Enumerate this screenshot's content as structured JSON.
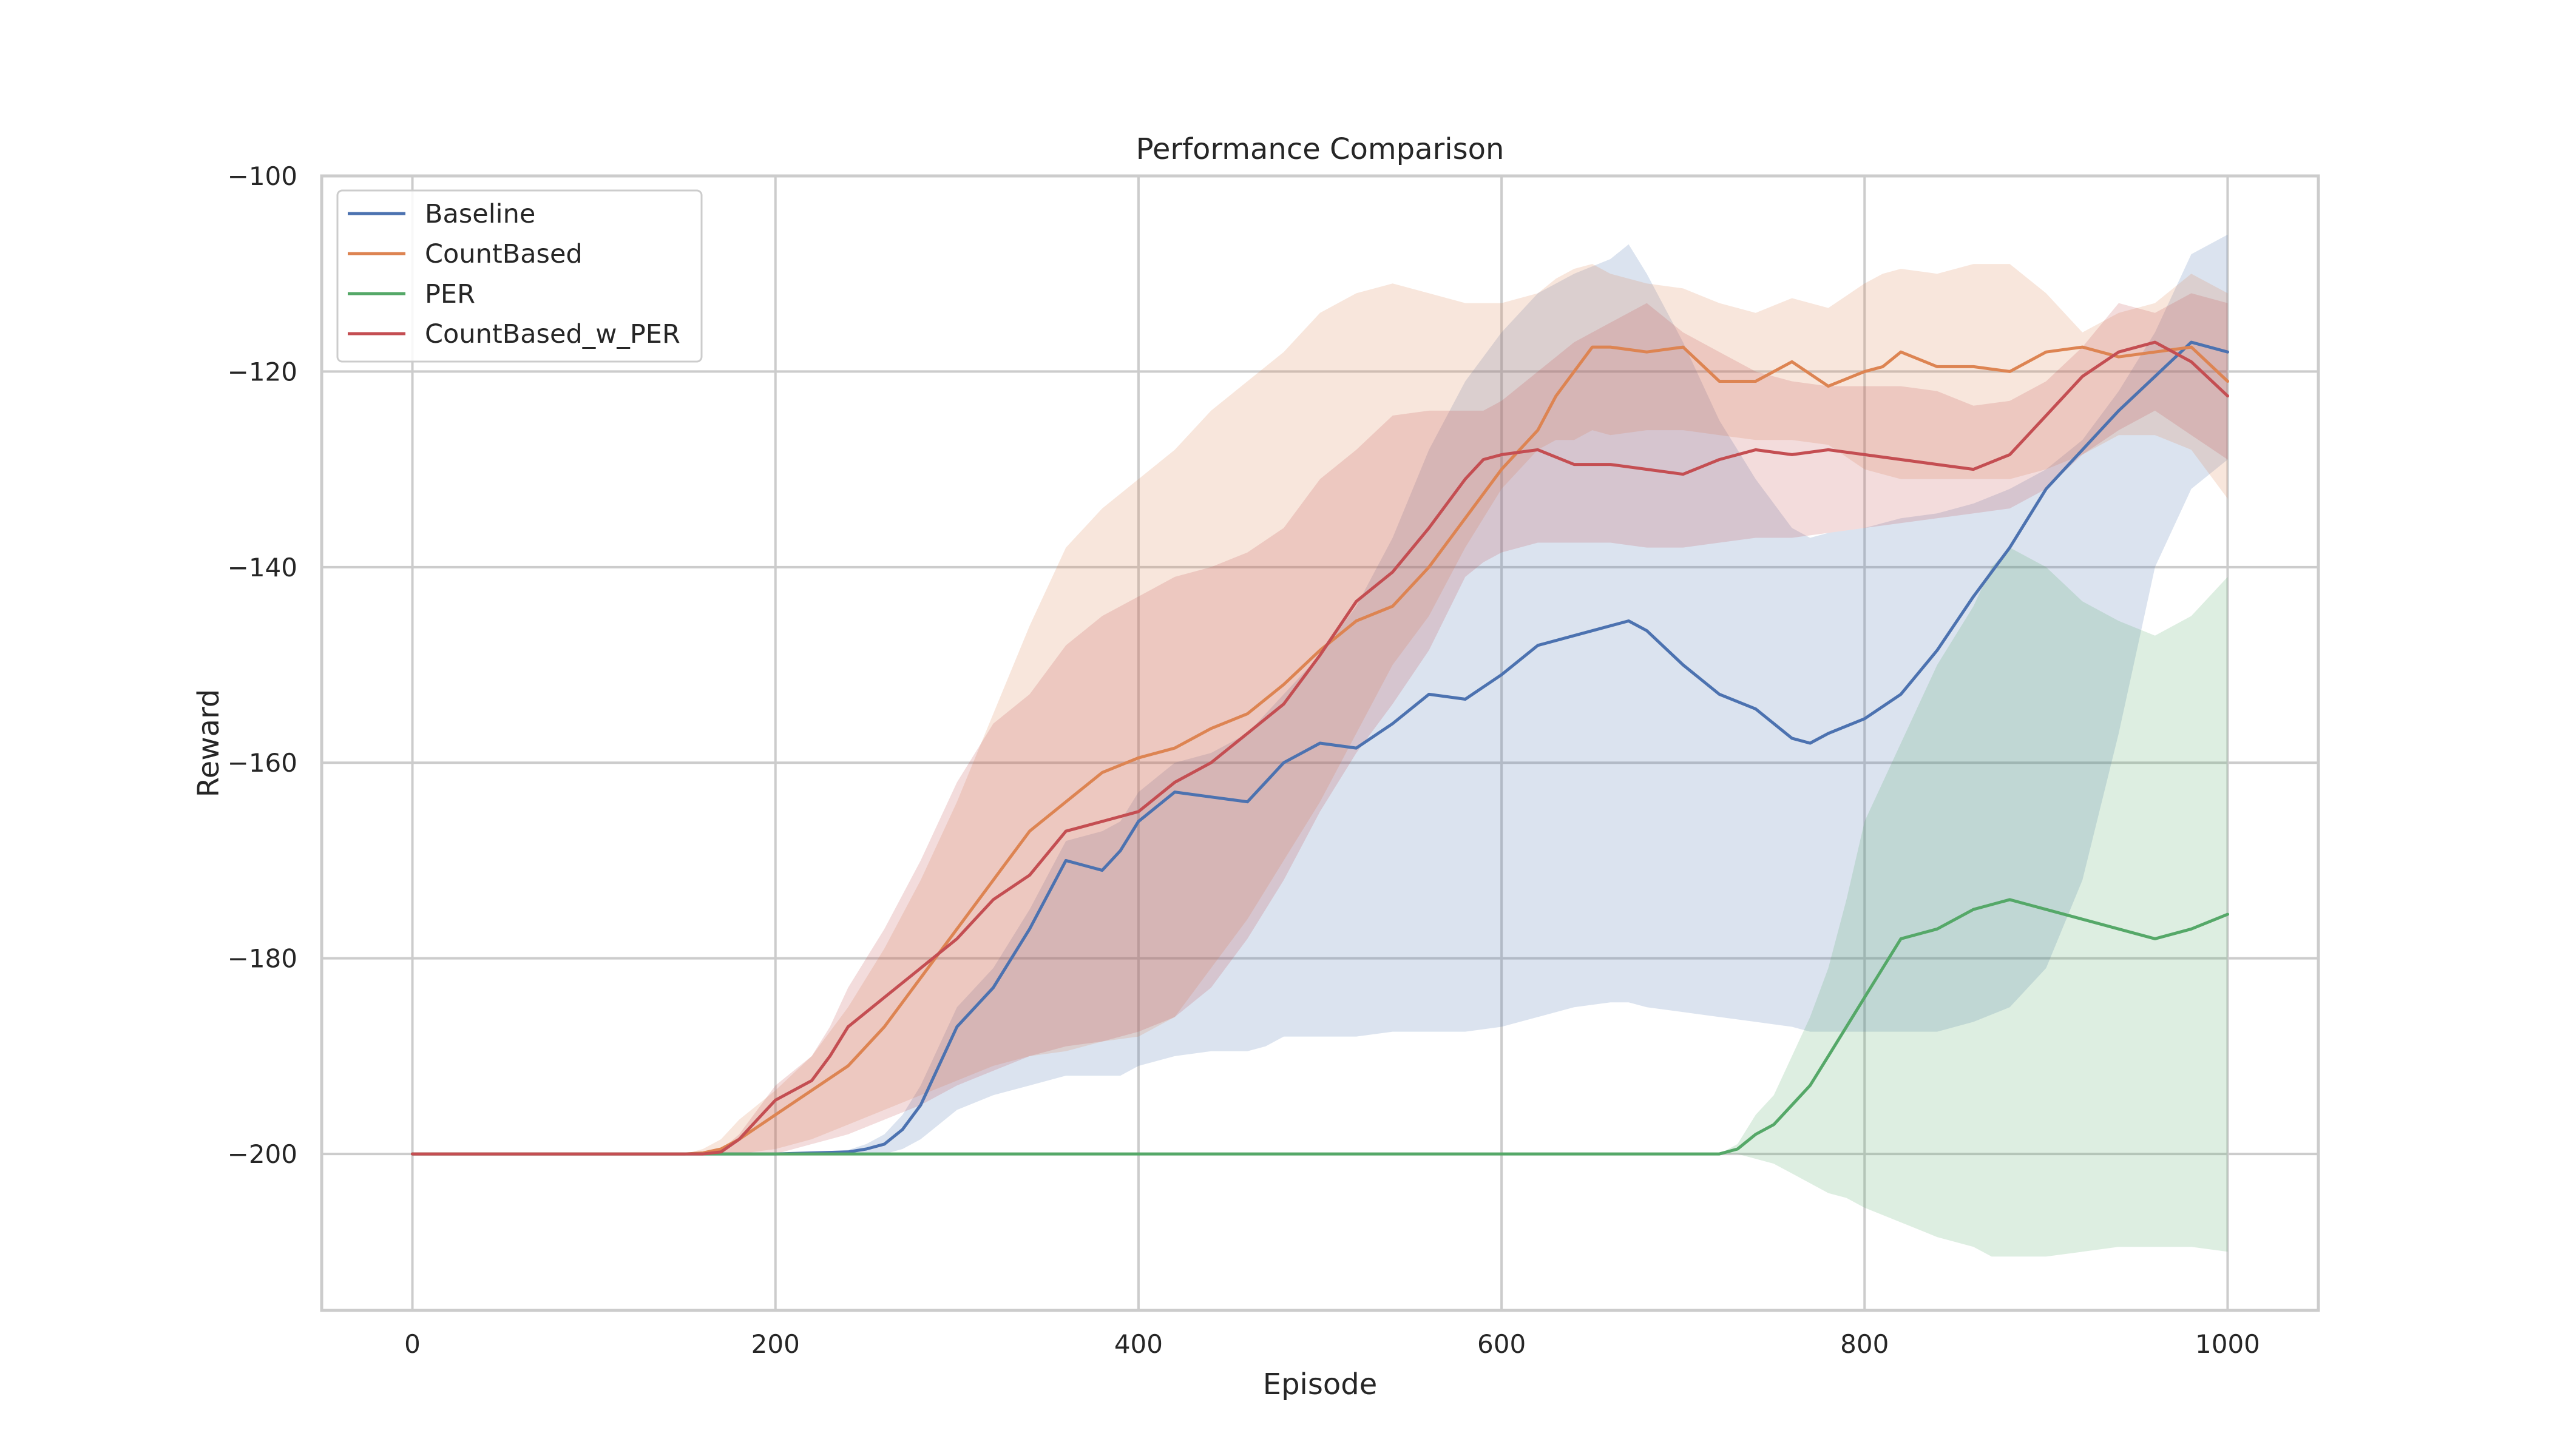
{
  "chart_data": {
    "type": "line",
    "title": "Performance Comparison",
    "xlabel": "Episode",
    "ylabel": "Reward",
    "xlim": [
      -50,
      1050
    ],
    "ylim": [
      -216,
      -100
    ],
    "xticks": [
      0,
      200,
      400,
      600,
      800,
      1000
    ],
    "yticks": [
      -100,
      -120,
      -140,
      -160,
      -180,
      -200
    ],
    "xtick_labels": [
      "0",
      "200",
      "400",
      "600",
      "800",
      "1000"
    ],
    "ytick_labels": [
      "−100",
      "−120",
      "−140",
      "−160",
      "−180",
      "−200"
    ],
    "grid": true,
    "legend_position": "top-left",
    "series": [
      {
        "name": "Baseline",
        "color": "#4c72b0",
        "x": [
          0,
          100,
          200,
          240,
          250,
          260,
          270,
          280,
          290,
          300,
          320,
          340,
          360,
          370,
          380,
          390,
          400,
          420,
          440,
          460,
          470,
          480,
          500,
          520,
          540,
          560,
          580,
          600,
          620,
          640,
          660,
          670,
          680,
          700,
          720,
          740,
          760,
          770,
          780,
          800,
          820,
          840,
          860,
          880,
          900,
          920,
          940,
          960,
          980,
          1000
        ],
        "mean": [
          -200,
          -200,
          -200,
          -199.8,
          -199.5,
          -199,
          -197.5,
          -195,
          -191,
          -187,
          -183,
          -177,
          -170,
          -170.5,
          -171,
          -169,
          -166,
          -163,
          -163.5,
          -164,
          -162,
          -160,
          -158,
          -158.5,
          -156,
          -153,
          -153.5,
          -151,
          -148,
          -147,
          -146,
          -145.5,
          -146.5,
          -150,
          -153,
          -154.5,
          -157.5,
          -158,
          -157,
          -155.5,
          -153,
          -148.5,
          -143,
          -138,
          -132,
          -128,
          -124,
          -120.5,
          -117,
          -118
        ],
        "upper": [
          -200,
          -200,
          -200,
          -199.6,
          -199,
          -198,
          -196,
          -193,
          -189,
          -185,
          -181,
          -175,
          -168,
          -167.5,
          -167,
          -166,
          -163,
          -160,
          -159,
          -157,
          -155,
          -153,
          -149,
          -144,
          -137,
          -128,
          -121,
          -116,
          -112,
          -110,
          -108.5,
          -107,
          -110,
          -117,
          -125,
          -131,
          -136,
          -137,
          -136.5,
          -136,
          -135,
          -134.5,
          -133.5,
          -132,
          -130,
          -127,
          -122,
          -116,
          -108,
          -106
        ],
        "lower": [
          -200,
          -200,
          -200,
          -200,
          -200,
          -200,
          -199.5,
          -198.5,
          -197,
          -195.5,
          -194,
          -193,
          -192,
          -192,
          -192,
          -192,
          -191,
          -190,
          -189.5,
          -189.5,
          -189,
          -188,
          -188,
          -188,
          -187.5,
          -187.5,
          -187.5,
          -187,
          -186,
          -185,
          -184.5,
          -184.5,
          -185,
          -185.5,
          -186,
          -186.5,
          -187,
          -187.5,
          -187.5,
          -187.5,
          -187.5,
          -187.5,
          -186.5,
          -185,
          -181,
          -172,
          -157,
          -140,
          -132,
          -129
        ]
      },
      {
        "name": "CountBased",
        "color": "#dd8452",
        "x": [
          0,
          100,
          150,
          160,
          170,
          180,
          200,
          220,
          240,
          260,
          280,
          300,
          320,
          340,
          360,
          380,
          400,
          420,
          440,
          460,
          480,
          500,
          520,
          540,
          560,
          580,
          600,
          620,
          630,
          640,
          650,
          660,
          680,
          700,
          720,
          740,
          760,
          780,
          800,
          810,
          820,
          840,
          860,
          880,
          900,
          920,
          940,
          960,
          980,
          1000
        ],
        "mean": [
          -200,
          -200,
          -200,
          -199.9,
          -199.5,
          -198.5,
          -196,
          -193.5,
          -191,
          -187,
          -182,
          -177,
          -172,
          -167,
          -164,
          -161,
          -159.5,
          -158.5,
          -156.5,
          -155,
          -152,
          -148.5,
          -145.5,
          -144,
          -140,
          -135,
          -130,
          -126,
          -122.5,
          -120,
          -117.5,
          -117.5,
          -118,
          -117.5,
          -121,
          -121,
          -119,
          -121.5,
          -120,
          -119.5,
          -118,
          -119.5,
          -119.5,
          -120,
          -118,
          -117.5,
          -118.5,
          -118,
          -117.5,
          -121
        ],
        "upper": [
          -200,
          -200,
          -200,
          -199.5,
          -198.5,
          -196.5,
          -193.5,
          -190,
          -185,
          -179,
          -172,
          -164,
          -155,
          -146,
          -138,
          -134,
          -131,
          -128,
          -124,
          -121,
          -118,
          -114,
          -112,
          -111,
          -112,
          -113,
          -113,
          -112,
          -110.5,
          -109.5,
          -109,
          -110,
          -111,
          -111.5,
          -113,
          -114,
          -112.5,
          -113.5,
          -111,
          -110,
          -109.5,
          -110,
          -109,
          -109,
          -112,
          -116,
          -114,
          -113,
          -110,
          -112
        ],
        "lower": [
          -200,
          -200,
          -200,
          -200,
          -200,
          -200,
          -199.5,
          -198.5,
          -197,
          -195.5,
          -194,
          -192.5,
          -191,
          -190,
          -189.5,
          -188.5,
          -188,
          -186,
          -181,
          -176,
          -170,
          -164,
          -157,
          -150,
          -145,
          -138,
          -132,
          -128,
          -127,
          -127,
          -126,
          -126.5,
          -126,
          -126,
          -126.5,
          -127,
          -127,
          -127.5,
          -130,
          -130.5,
          -131,
          -131,
          -131,
          -131,
          -130,
          -128.5,
          -126.5,
          -126.5,
          -128,
          -133
        ]
      },
      {
        "name": "PER",
        "color": "#55a868",
        "x": [
          0,
          100,
          200,
          300,
          400,
          500,
          600,
          700,
          720,
          730,
          740,
          750,
          760,
          770,
          780,
          790,
          800,
          820,
          840,
          860,
          870,
          880,
          890,
          900,
          920,
          940,
          960,
          980,
          1000
        ],
        "mean": [
          -200,
          -200,
          -200,
          -200,
          -200,
          -200,
          -200,
          -200,
          -200,
          -199.5,
          -198,
          -197,
          -195,
          -193,
          -190,
          -187,
          -184,
          -178,
          -177,
          -175,
          -174.5,
          -174,
          -174.5,
          -175,
          -176,
          -177,
          -178,
          -177,
          -175.5
        ],
        "upper": [
          -200,
          -200,
          -200,
          -200,
          -200,
          -200,
          -200,
          -200,
          -200,
          -199,
          -196,
          -194,
          -190,
          -186,
          -181,
          -174,
          -166,
          -158,
          -150,
          -144,
          -140,
          -138,
          -139,
          -140,
          -143.5,
          -145.5,
          -147,
          -145,
          -141
        ],
        "lower": [
          -200,
          -200,
          -200,
          -200,
          -200,
          -200,
          -200,
          -200,
          -200,
          -200,
          -200.5,
          -201,
          -202,
          -203,
          -204,
          -204.5,
          -205.5,
          -207,
          -208.5,
          -209.5,
          -210.5,
          -210.5,
          -210.5,
          -210.5,
          -210,
          -209.5,
          -209.5,
          -209.5,
          -210
        ]
      },
      {
        "name": "CountBased_w_PER",
        "color": "#c44e52",
        "x": [
          0,
          100,
          160,
          170,
          180,
          190,
          200,
          210,
          220,
          230,
          240,
          260,
          280,
          300,
          320,
          340,
          360,
          380,
          400,
          420,
          440,
          460,
          480,
          500,
          520,
          540,
          560,
          580,
          590,
          600,
          620,
          640,
          660,
          680,
          700,
          720,
          740,
          760,
          780,
          800,
          820,
          840,
          860,
          880,
          900,
          920,
          940,
          960,
          980,
          1000
        ],
        "mean": [
          -200,
          -200,
          -200,
          -199.8,
          -198.5,
          -196.5,
          -194.5,
          -193.5,
          -192.5,
          -190,
          -187,
          -184,
          -181,
          -178,
          -174,
          -171.5,
          -167,
          -166,
          -165,
          -162,
          -160,
          -157,
          -154,
          -149,
          -143.5,
          -140.5,
          -136,
          -131,
          -129,
          -128.5,
          -128,
          -129.5,
          -129.5,
          -130,
          -130.5,
          -129,
          -128,
          -128.5,
          -128,
          -128.5,
          -129,
          -129.5,
          -130,
          -128.5,
          -124.5,
          -120.5,
          -118,
          -117,
          -119,
          -122.5
        ],
        "upper": [
          -200,
          -200,
          -200,
          -199.6,
          -198,
          -195.5,
          -193,
          -191.5,
          -190,
          -187,
          -183,
          -177,
          -170,
          -162,
          -156,
          -153,
          -148,
          -145,
          -143,
          -141,
          -140,
          -138.5,
          -136,
          -131,
          -128,
          -124.5,
          -124,
          -124,
          -124,
          -123,
          -120,
          -117,
          -115,
          -113,
          -116,
          -118,
          -120,
          -121,
          -121.5,
          -121.5,
          -121.5,
          -122,
          -123.5,
          -123,
          -121,
          -117.5,
          -113,
          -114,
          -112,
          -113
        ],
        "lower": [
          -200,
          -200,
          -200,
          -200,
          -200,
          -200,
          -200,
          -199.5,
          -199,
          -198.5,
          -198,
          -196.5,
          -195,
          -193,
          -191.5,
          -190,
          -189,
          -188.5,
          -187.5,
          -186,
          -183,
          -178,
          -172,
          -165,
          -159,
          -154,
          -148.5,
          -141,
          -139.5,
          -138.5,
          -137.5,
          -137.5,
          -137.5,
          -138,
          -138,
          -137.5,
          -137,
          -137,
          -136.5,
          -136,
          -135.5,
          -135,
          -134.5,
          -134,
          -132,
          -128.5,
          -126,
          -124,
          -126.5,
          -129
        ]
      }
    ]
  }
}
